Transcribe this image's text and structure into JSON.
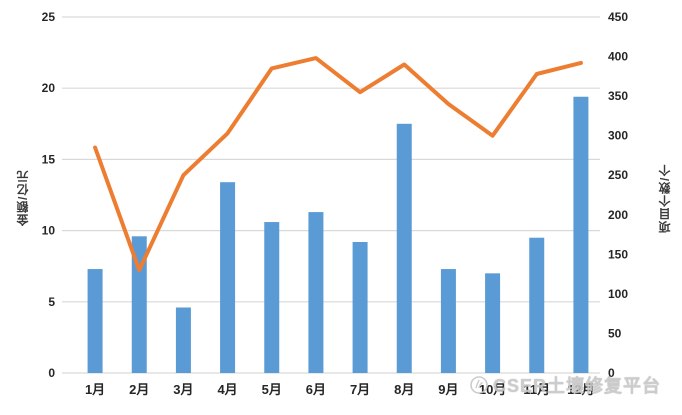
{
  "chart_data": {
    "type": "combo",
    "title": "",
    "categories": [
      "1月",
      "2月",
      "3月",
      "4月",
      "5月",
      "6月",
      "7月",
      "8月",
      "9月",
      "10月",
      "11月",
      "12月"
    ],
    "series": [
      {
        "name": "金额/亿元",
        "type": "bar",
        "axis": "left",
        "color": "#5B9BD5",
        "values": [
          7.3,
          9.6,
          4.6,
          13.4,
          10.6,
          11.3,
          9.2,
          17.5,
          7.3,
          7.0,
          9.5,
          19.4
        ]
      },
      {
        "name": "项目个数/个",
        "type": "line",
        "axis": "right",
        "color": "#ED7D31",
        "values": [
          285,
          130,
          250,
          303,
          385,
          398,
          355,
          390,
          340,
          300,
          378,
          392
        ]
      }
    ],
    "left_axis": {
      "title": "金额/亿元",
      "min": 0,
      "max": 25,
      "step": 5,
      "ticks": [
        0,
        5,
        10,
        15,
        20,
        25
      ]
    },
    "right_axis": {
      "title": "项目个数/个",
      "min": 0,
      "max": 450,
      "step": 50,
      "ticks": [
        0,
        50,
        100,
        150,
        200,
        250,
        300,
        350,
        400,
        450
      ]
    },
    "grid": true,
    "legend": "none"
  },
  "watermark": {
    "text": "CSER土壤修复平台",
    "logo_icon": "circle-emblem"
  },
  "colors": {
    "bar": "#5B9BD5",
    "line": "#ED7D31",
    "gridline": "#D9D9D9",
    "tick_label": "#262626",
    "axis_title": "#3a3a3a",
    "watermark": "#c7c7c7"
  }
}
